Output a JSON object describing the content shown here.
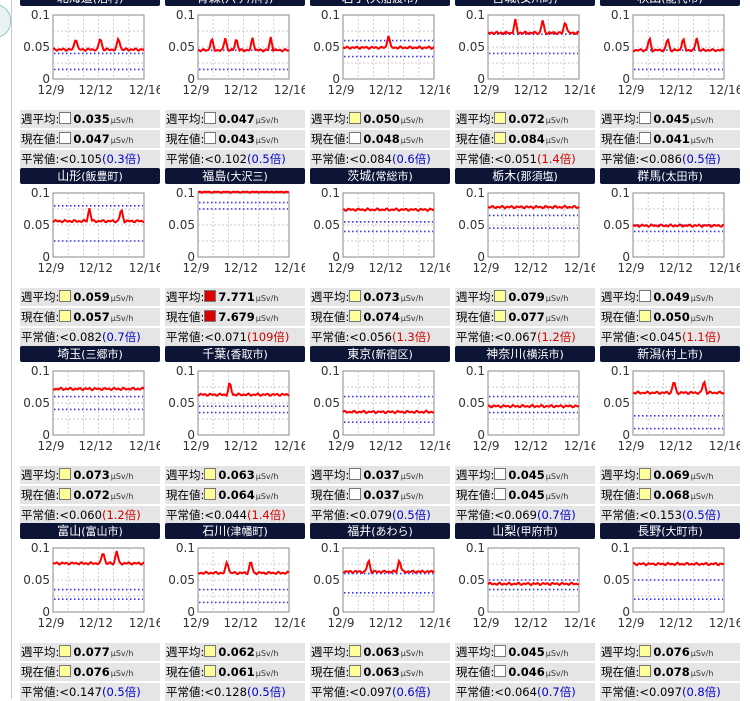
{
  "labels": {
    "weekly_avg": "週平均:",
    "current": "現在値:",
    "normal": "平常値:",
    "unit": "μSv/h",
    "ratio_suffix": "倍"
  },
  "axis": {
    "y_ticks": [
      "0.1",
      "0.05",
      "0"
    ],
    "x_ticks": [
      "12/9",
      "12/12",
      "12/16"
    ]
  },
  "colors": {
    "header_bg": "#0c1535",
    "series": "#ff0000",
    "guide": "#3333ff",
    "ratio_normal": "#0000cc",
    "ratio_high": "#cc0000",
    "box_white": "#ffffff",
    "box_yellow": "#ffff99",
    "box_red": "#dd0000"
  },
  "stations": [
    {
      "pref": "北海道",
      "city": "泊村",
      "weekly": "0.035",
      "current": "0.047",
      "normal": "<0.105",
      "ratio": "0.3",
      "ratio_high": false,
      "box_weekly": "white",
      "box_current": "white",
      "level": 0.046,
      "band": [
        0.04,
        0.015
      ],
      "spikes": [
        0.25,
        0.52,
        0.72
      ]
    },
    {
      "pref": "青森",
      "city": "六ヶ所村",
      "weekly": "0.047",
      "current": "0.043",
      "normal": "<0.102",
      "ratio": "0.5",
      "ratio_high": false,
      "box_weekly": "white",
      "box_current": "white",
      "level": 0.045,
      "band": [
        0.045,
        0.015
      ],
      "spikes": [
        0.15,
        0.3,
        0.42,
        0.6,
        0.8
      ]
    },
    {
      "pref": "岩手",
      "city": "大船渡市",
      "weekly": "0.050",
      "current": "0.048",
      "normal": "<0.084",
      "ratio": "0.6",
      "ratio_high": false,
      "box_weekly": "yellow",
      "box_current": "white",
      "level": 0.049,
      "band": [
        0.06,
        0.035
      ],
      "spikes": [
        0.5
      ]
    },
    {
      "pref": "宮城",
      "city": "女川町",
      "weekly": "0.072",
      "current": "0.084",
      "normal": "<0.051",
      "ratio": "1.4",
      "ratio_high": true,
      "box_weekly": "yellow",
      "box_current": "yellow",
      "level": 0.072,
      "band": [
        0.07,
        0.04
      ],
      "spikes": [
        0.3,
        0.6,
        0.85
      ]
    },
    {
      "pref": "秋田",
      "city": "能代市",
      "weekly": "0.045",
      "current": "0.041",
      "normal": "<0.086",
      "ratio": "0.5",
      "ratio_high": false,
      "box_weekly": "white",
      "box_current": "white",
      "level": 0.045,
      "band": [
        0.045,
        0.015
      ],
      "spikes": [
        0.18,
        0.38,
        0.55,
        0.7
      ]
    },
    {
      "pref": "山形",
      "city": "飯豊町",
      "weekly": "0.059",
      "current": "0.057",
      "normal": "<0.082",
      "ratio": "0.7",
      "ratio_high": false,
      "box_weekly": "yellow",
      "box_current": "yellow",
      "level": 0.056,
      "band": [
        0.08,
        0.025
      ],
      "spikes": [
        0.4,
        0.75
      ]
    },
    {
      "pref": "福島",
      "city": "大沢三",
      "weekly": "7.771",
      "current": "7.679",
      "normal": "<0.071",
      "ratio": "109",
      "ratio_high": true,
      "box_weekly": "red",
      "box_current": "red",
      "level": 0.102,
      "band": [
        0.085,
        0.075
      ],
      "spikes": []
    },
    {
      "pref": "茨城",
      "city": "常総市",
      "weekly": "0.073",
      "current": "0.074",
      "normal": "<0.056",
      "ratio": "1.3",
      "ratio_high": true,
      "box_weekly": "yellow",
      "box_current": "yellow",
      "level": 0.074,
      "band": [
        0.055,
        0.04
      ],
      "spikes": []
    },
    {
      "pref": "栃木",
      "city": "那須塩",
      "weekly": "0.079",
      "current": "0.077",
      "normal": "<0.067",
      "ratio": "1.2",
      "ratio_high": true,
      "box_weekly": "yellow",
      "box_current": "yellow",
      "level": 0.078,
      "band": [
        0.065,
        0.045
      ],
      "spikes": []
    },
    {
      "pref": "群馬",
      "city": "太田市",
      "weekly": "0.049",
      "current": "0.050",
      "normal": "<0.045",
      "ratio": "1.1",
      "ratio_high": true,
      "box_weekly": "white",
      "box_current": "yellow",
      "level": 0.049,
      "band": [
        0.05,
        0.04
      ],
      "spikes": []
    },
    {
      "pref": "埼玉",
      "city": "三郷市",
      "weekly": "0.073",
      "current": "0.072",
      "normal": "<0.060",
      "ratio": "1.2",
      "ratio_high": true,
      "box_weekly": "yellow",
      "box_current": "yellow",
      "level": 0.072,
      "band": [
        0.06,
        0.04
      ],
      "spikes": []
    },
    {
      "pref": "千葉",
      "city": "香取市",
      "weekly": "0.063",
      "current": "0.064",
      "normal": "<0.044",
      "ratio": "1.4",
      "ratio_high": true,
      "box_weekly": "yellow",
      "box_current": "yellow",
      "level": 0.063,
      "band": [
        0.045,
        0.035
      ],
      "spikes": [
        0.35
      ]
    },
    {
      "pref": "東京",
      "city": "新宿区",
      "weekly": "0.037",
      "current": "0.037",
      "normal": "<0.079",
      "ratio": "0.5",
      "ratio_high": false,
      "box_weekly": "white",
      "box_current": "white",
      "level": 0.036,
      "band": [
        0.06,
        0.02
      ],
      "spikes": []
    },
    {
      "pref": "神奈川",
      "city": "横浜市",
      "weekly": "0.045",
      "current": "0.045",
      "normal": "<0.069",
      "ratio": "0.7",
      "ratio_high": false,
      "box_weekly": "white",
      "box_current": "white",
      "level": 0.045,
      "band": [
        0.06,
        0.035
      ],
      "spikes": []
    },
    {
      "pref": "新潟",
      "city": "村上市",
      "weekly": "0.069",
      "current": "0.068",
      "normal": "<0.153",
      "ratio": "0.5",
      "ratio_high": false,
      "box_weekly": "yellow",
      "box_current": "yellow",
      "level": 0.066,
      "band": [
        0.03,
        0.01
      ],
      "spikes": [
        0.45,
        0.78
      ]
    },
    {
      "pref": "富山",
      "city": "富山市",
      "weekly": "0.077",
      "current": "0.076",
      "normal": "<0.147",
      "ratio": "0.5",
      "ratio_high": false,
      "box_weekly": "yellow",
      "box_current": "yellow",
      "level": 0.076,
      "band": [
        0.035,
        0.02
      ],
      "spikes": [
        0.55,
        0.7
      ]
    },
    {
      "pref": "石川",
      "city": "津幡町",
      "weekly": "0.062",
      "current": "0.061",
      "normal": "<0.128",
      "ratio": "0.5",
      "ratio_high": false,
      "box_weekly": "yellow",
      "box_current": "yellow",
      "level": 0.061,
      "band": [
        0.035,
        0.015
      ],
      "spikes": [
        0.32,
        0.58
      ]
    },
    {
      "pref": "福井",
      "city": "あわら",
      "weekly": "0.063",
      "current": "0.063",
      "normal": "<0.097",
      "ratio": "0.6",
      "ratio_high": false,
      "box_weekly": "yellow",
      "box_current": "yellow",
      "level": 0.063,
      "band": [
        0.06,
        0.03
      ],
      "spikes": [
        0.28,
        0.62
      ]
    },
    {
      "pref": "山梨",
      "city": "甲府市",
      "weekly": "0.045",
      "current": "0.046",
      "normal": "<0.064",
      "ratio": "0.7",
      "ratio_high": false,
      "box_weekly": "white",
      "box_current": "white",
      "level": 0.044,
      "band": [
        0.05,
        0.035
      ],
      "spikes": []
    },
    {
      "pref": "長野",
      "city": "大町市",
      "weekly": "0.076",
      "current": "0.078",
      "normal": "<0.097",
      "ratio": "0.8",
      "ratio_high": false,
      "box_weekly": "yellow",
      "box_current": "yellow",
      "level": 0.075,
      "band": [
        0.05,
        0.02
      ],
      "spikes": []
    }
  ]
}
